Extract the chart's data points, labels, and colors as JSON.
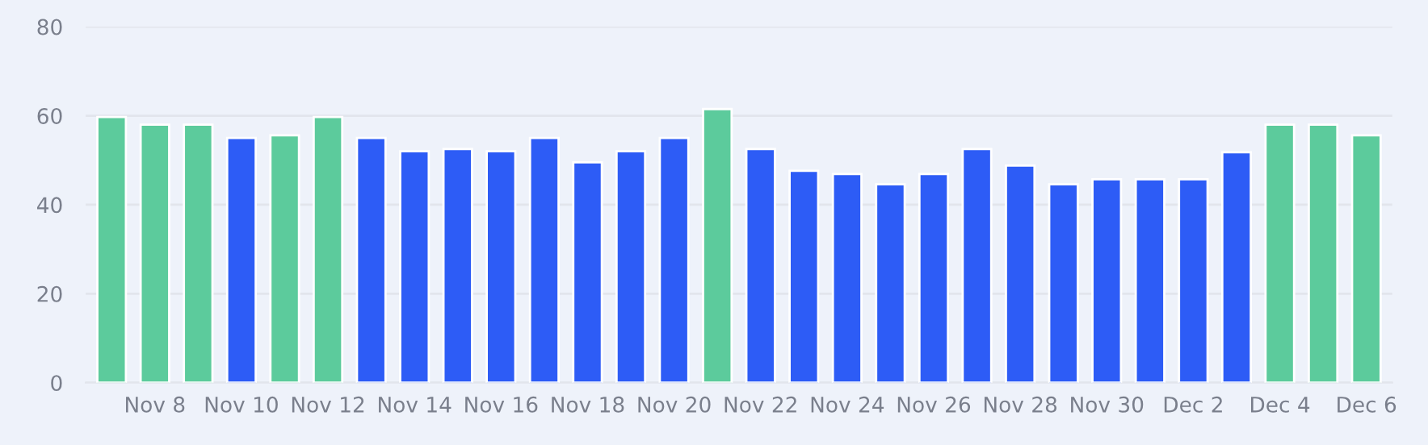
{
  "chart_data": {
    "type": "bar",
    "categories": [
      null,
      "Nov 8",
      null,
      "Nov 10",
      null,
      "Nov 12",
      null,
      "Nov 14",
      null,
      "Nov 16",
      null,
      "Nov 18",
      null,
      "Nov 20",
      null,
      "Nov 22",
      null,
      "Nov 24",
      null,
      "Nov 26",
      null,
      "Nov 28",
      null,
      "Nov 30",
      null,
      "Dec 2",
      null,
      "Dec 4",
      null,
      "Dec 6"
    ],
    "values": [
      59.7,
      58,
      58,
      55,
      55.6,
      59.7,
      55,
      52,
      52.5,
      52,
      55,
      49.5,
      52,
      55,
      61.5,
      52.5,
      47.6,
      46.9,
      44.6,
      46.9,
      52.5,
      48.8,
      44.6,
      45.7,
      45.7,
      45.7,
      51.8,
      58,
      58,
      55.6
    ],
    "colors": [
      "#5ccb9c",
      "#5ccb9c",
      "#5ccb9c",
      "#2d5cf6",
      "#5ccb9c",
      "#5ccb9c",
      "#2d5cf6",
      "#2d5cf6",
      "#2d5cf6",
      "#2d5cf6",
      "#2d5cf6",
      "#2d5cf6",
      "#2d5cf6",
      "#2d5cf6",
      "#5ccb9c",
      "#2d5cf6",
      "#2d5cf6",
      "#2d5cf6",
      "#2d5cf6",
      "#2d5cf6",
      "#2d5cf6",
      "#2d5cf6",
      "#2d5cf6",
      "#2d5cf6",
      "#2d5cf6",
      "#2d5cf6",
      "#2d5cf6",
      "#5ccb9c",
      "#5ccb9c",
      "#5ccb9c"
    ],
    "ylim": [
      0,
      80
    ],
    "yticks": [
      0,
      20,
      40,
      60,
      80
    ],
    "grid": "y"
  }
}
